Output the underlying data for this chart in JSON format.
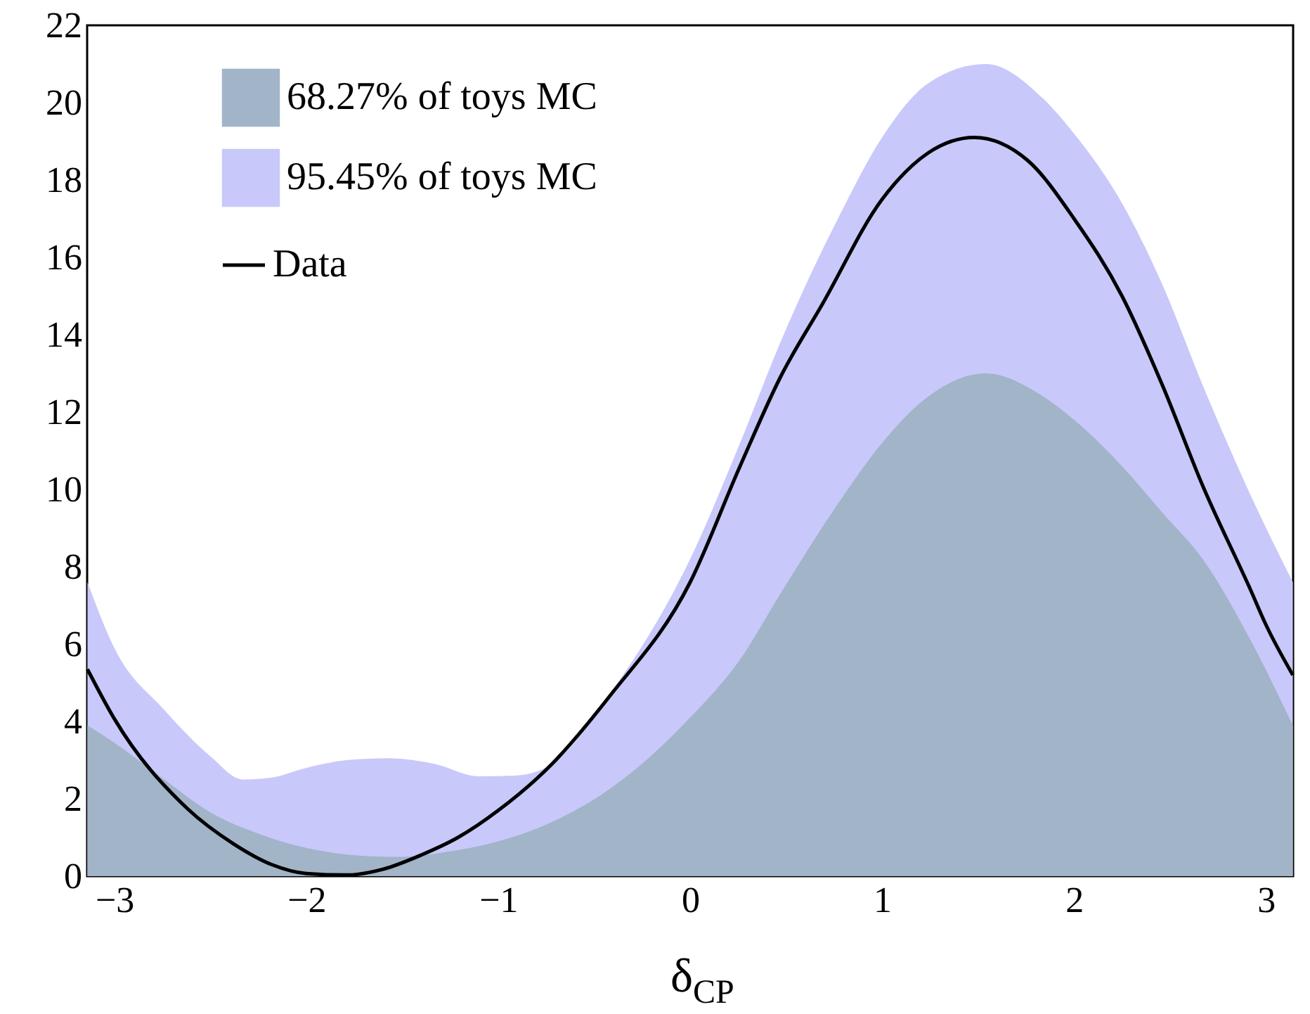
{
  "chart_data": {
    "type": "area",
    "xlabel": "δ$_{CP}$",
    "xlim": [
      -3.1416,
      3.1416
    ],
    "xticks": [
      -3,
      -2,
      -1,
      0,
      1,
      2,
      3
    ],
    "ylim": [
      0,
      22
    ],
    "yticks": [
      0,
      2,
      4,
      6,
      8,
      10,
      12,
      14,
      16,
      18,
      20,
      22
    ],
    "grid": false,
    "legend": "top left",
    "series": [
      {
        "name": "95.45% of toys MC",
        "color": "#c8c8fa",
        "x": [
          -3.14,
          -3,
          -2.74,
          -2.5,
          -2.33,
          -2.18,
          -2,
          -1.79,
          -1.57,
          -1.33,
          -1.1,
          -0.91,
          -0.72,
          -0.42,
          0,
          0.26,
          0.47,
          0.78,
          1,
          1.24,
          1.54,
          1.84,
          2,
          2.25,
          2.46,
          2.67,
          2.92,
          3.14
        ],
        "values": [
          7.6,
          5.9,
          4.3,
          3.1,
          2.5,
          2.55,
          2.8,
          3.0,
          3.05,
          2.9,
          2.58,
          2.6,
          2.9,
          4.7,
          8.2,
          11.2,
          13.8,
          17.1,
          19.1,
          20.5,
          21.0,
          20.1,
          19.2,
          17.4,
          15.3,
          12.7,
          9.85,
          7.6
        ]
      },
      {
        "name": "68.27% of toys MC",
        "color": "#a1b4c8",
        "x": [
          -3.14,
          -3,
          -2.74,
          -2.5,
          -2.25,
          -2,
          -1.77,
          -1.52,
          -1.28,
          -1,
          -0.72,
          -0.42,
          0,
          0.26,
          0.47,
          0.78,
          1,
          1.24,
          1.54,
          1.84,
          2,
          2.25,
          2.46,
          2.67,
          2.92,
          3.14
        ],
        "values": [
          3.9,
          3.45,
          2.5,
          1.65,
          1.1,
          0.73,
          0.55,
          0.5,
          0.62,
          0.9,
          1.4,
          2.25,
          4.1,
          5.6,
          7.3,
          9.7,
          11.2,
          12.4,
          13.0,
          12.4,
          11.8,
          10.6,
          9.4,
          8.2,
          6.1,
          3.9
        ]
      },
      {
        "name": "Data",
        "type": "line",
        "color": "#000000",
        "x": [
          -3.14,
          -3,
          -2.62,
          -2.38,
          -2.18,
          -2,
          -1.79,
          -1.6,
          -1.4,
          -1.21,
          -1,
          -0.72,
          -0.42,
          0,
          0.26,
          0.47,
          0.69,
          1,
          1.24,
          1.48,
          1.76,
          2,
          2.25,
          2.46,
          2.67,
          2.92,
          3,
          3.14
        ],
        "values": [
          5.35,
          4.07,
          1.75,
          0.84,
          0.3,
          0.07,
          0.03,
          0.18,
          0.55,
          1.0,
          1.7,
          2.9,
          4.65,
          7.6,
          10.6,
          12.9,
          14.8,
          17.5,
          18.7,
          19.1,
          18.5,
          17.0,
          15.0,
          12.7,
          10.1,
          7.4,
          6.5,
          5.2
        ]
      }
    ]
  }
}
